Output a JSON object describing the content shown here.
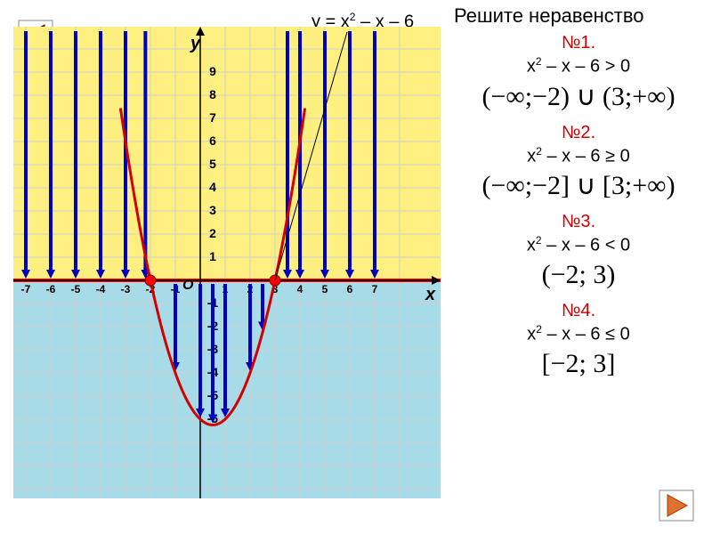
{
  "header": "Решите неравенство",
  "equation_label": "у = х² – х – 6",
  "axis": {
    "x_label": "х",
    "y_label": "у",
    "o_label": "О"
  },
  "chart": {
    "type": "function-plot",
    "xlim": [
      -8,
      8
    ],
    "ylim": [
      -10,
      10
    ],
    "xtick_labels": [
      "-7",
      "-6",
      "-5",
      "-4",
      "-3",
      "-2",
      "-1",
      "1",
      "2",
      "3",
      "4",
      "5",
      "6",
      "7"
    ],
    "ytick_labels_pos": [
      "1",
      "2",
      "3",
      "4",
      "5",
      "6",
      "7",
      "8",
      "9"
    ],
    "ytick_labels_neg": [
      "-1",
      "-2",
      "-3",
      "-4",
      "-5",
      "-6"
    ],
    "background_top": "#fdf080",
    "background_bottom": "#a8dbe8",
    "grid_color": "#cfcfcf",
    "axis_color": "#000000",
    "parabola_color": "#d40000",
    "parabola_width": 3,
    "x_highlight_color": "#ff0000",
    "x_highlight_width": 4,
    "arrow_color": "#0000c0",
    "arrow_width": 4,
    "root_points": [
      -2,
      3
    ],
    "root_point_color": "#ff0000",
    "down_arrows_x": [
      -7,
      -6,
      -5,
      -4,
      -3,
      3.5,
      4,
      5,
      6,
      7,
      -2.2
    ],
    "parabola_arrows_x": [
      -1,
      0,
      0.5,
      1,
      2,
      2.5
    ],
    "parabola": {
      "a": 1,
      "b": -1,
      "c": -6
    }
  },
  "problems": [
    {
      "num": "№1.",
      "ineq": "x² – x – 6 > 0",
      "ans": "(−∞;−2) ∪ (3;+∞)"
    },
    {
      "num": "№2.",
      "ineq": "x² – x – 6 ≥ 0",
      "ans": "(−∞;−2] ∪ [3;+∞)"
    },
    {
      "num": "№3.",
      "ineq": "x² – x – 6 < 0",
      "ans": "(−2; 3)"
    },
    {
      "num": "№4.",
      "ineq": "x² – x – 6 ≤ 0",
      "ans": "[−2; 3]"
    }
  ],
  "nav": {
    "back_color": "#c04040",
    "fwd_color": "#e07030"
  }
}
